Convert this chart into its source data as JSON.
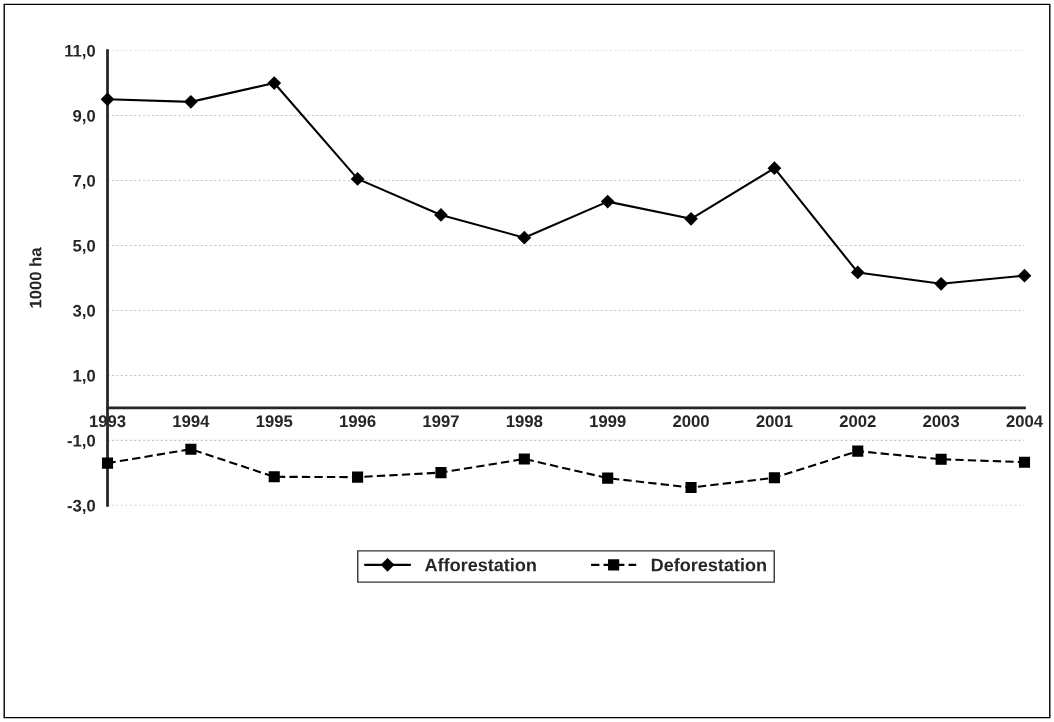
{
  "chart_data": {
    "type": "line",
    "ylabel": "1000 ha",
    "categories": [
      "1993",
      "1994",
      "1995",
      "1996",
      "1997",
      "1998",
      "1999",
      "2000",
      "2001",
      "2002",
      "2003",
      "2004"
    ],
    "series": [
      {
        "name": "Afforestation",
        "color": "#000000",
        "marker": "diamond",
        "line_style": "solid",
        "values": [
          9.5,
          9.42,
          10.0,
          7.05,
          5.94,
          5.24,
          6.35,
          5.82,
          7.38,
          4.17,
          3.82,
          4.07
        ]
      },
      {
        "name": "Deforestation",
        "color": "#000000",
        "marker": "square",
        "line_style": "dashed",
        "values": [
          -1.7,
          -1.27,
          -2.12,
          -2.13,
          -1.99,
          -1.57,
          -2.16,
          -2.45,
          -2.15,
          -1.33,
          -1.58,
          -1.67
        ]
      }
    ],
    "ylim": [
      -3,
      11
    ],
    "yticks": [
      {
        "value": -3,
        "label": "-3,0"
      },
      {
        "value": -1,
        "label": "-1,0"
      },
      {
        "value": 1,
        "label": "1,0"
      },
      {
        "value": 3,
        "label": "3,0"
      },
      {
        "value": 5,
        "label": "5,0"
      },
      {
        "value": 7,
        "label": "7,0"
      },
      {
        "value": 9,
        "label": "9,0"
      },
      {
        "value": 11,
        "label": "11,0"
      }
    ],
    "grid": "y",
    "legend": "bottom"
  }
}
